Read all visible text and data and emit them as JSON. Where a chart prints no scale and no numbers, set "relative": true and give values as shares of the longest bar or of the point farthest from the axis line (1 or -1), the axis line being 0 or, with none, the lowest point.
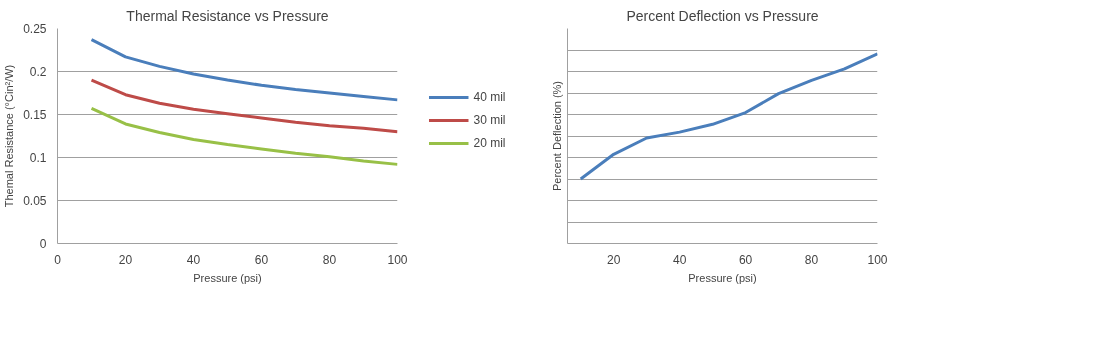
{
  "chart_data": [
    {
      "type": "line",
      "title": "Thermal Resistance vs Pressure",
      "xlabel": "Pressure (psi)",
      "ylabel": "Themal Resistance (°Cin²/W)",
      "x": [
        10,
        20,
        30,
        40,
        50,
        60,
        70,
        80,
        90,
        100
      ],
      "series": [
        {
          "name": "40 mil",
          "color": "#4a7ebb",
          "values": [
            0.237,
            0.217,
            0.206,
            0.197,
            0.19,
            0.184,
            0.179,
            0.175,
            0.171,
            0.167
          ]
        },
        {
          "name": "30 mil",
          "color": "#be4b48",
          "values": [
            0.19,
            0.173,
            0.163,
            0.156,
            0.151,
            0.146,
            0.141,
            0.137,
            0.134,
            0.13
          ]
        },
        {
          "name": "20 mil",
          "color": "#98c047",
          "values": [
            0.157,
            0.139,
            0.129,
            0.121,
            0.115,
            0.11,
            0.105,
            0.101,
            0.096,
            0.092
          ]
        }
      ],
      "xlim": [
        0,
        100
      ],
      "xticks": [
        0,
        20,
        40,
        60,
        80,
        100
      ],
      "ylim": [
        0,
        0.25
      ],
      "yticks": [
        0,
        0.05,
        0.1,
        0.15,
        0.2,
        0.25
      ],
      "grid": "y",
      "legend": "right"
    },
    {
      "type": "line",
      "title": "Percent Deflection vs Pressure",
      "xlabel": "Pressure (psi)",
      "ylabel": "Percent Deflection (%)",
      "x": [
        10,
        20,
        30,
        40,
        50,
        60,
        70,
        80,
        90,
        100
      ],
      "series": [
        {
          "color": "#4a7ebb",
          "values": [
            0.34,
            0.47,
            0.556,
            0.587,
            0.628,
            0.69,
            0.79,
            0.86,
            0.92,
            1.0
          ]
        }
      ],
      "relative": true,
      "xlim": [
        6,
        100
      ],
      "xticks": [
        20,
        40,
        60,
        80,
        100
      ],
      "grid": "y"
    }
  ]
}
